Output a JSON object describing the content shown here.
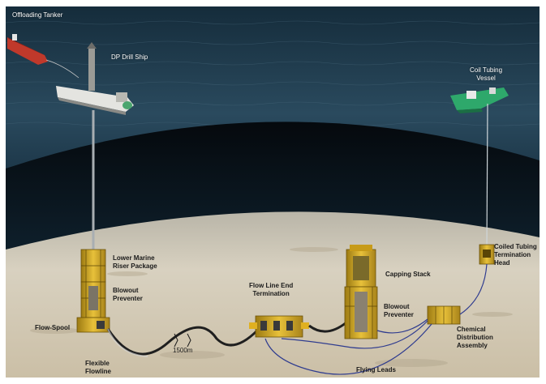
{
  "labels": {
    "offloading_tanker": "Offloading Tanker",
    "dp_drill_ship": "DP Drill Ship",
    "coil_tubing_vessel": "Coil Tubing\nVessel",
    "lower_marine_riser_package": "Lower Marine\nRiser Package",
    "blowout_preventer_left": "Blowout\nPreventer",
    "flow_spool": "Flow-Spool",
    "flexible_flowline": "Flexible\nFlowline",
    "distance_marker": "1500m",
    "flow_line_end_termination": "Flow Line End\nTermination",
    "capping_stack": "Capping Stack",
    "blowout_preventer_right": "Blowout\nPreventer",
    "chemical_distribution_assembly": "Chemical\nDistribution\nAssembly",
    "coiled_tubing_termination_head": "Coiled Tubing\nTermination\nHead",
    "flying_leads": "Flying Leads"
  },
  "colors": {
    "ocean_surface": "#1f3a4d",
    "deep_water": "#0c1a24",
    "seabed": "#d9d2c2",
    "equipment_yellow": "#e0b020",
    "tanker_red": "#c0392b",
    "vessel_green": "#2ea86b",
    "flying_lead_blue": "#2e3b8f"
  }
}
